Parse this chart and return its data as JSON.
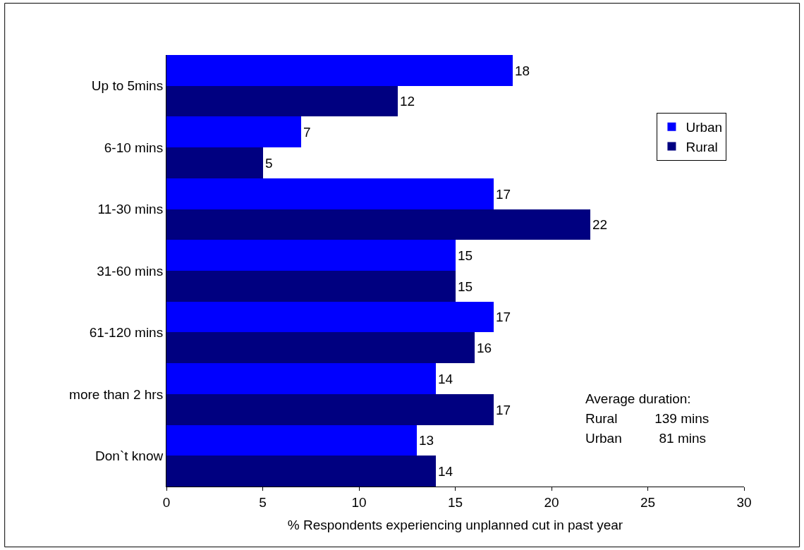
{
  "chart_data": {
    "type": "bar",
    "orientation": "horizontal",
    "xlabel": "% Respondents experiencing unplanned cut in past year",
    "categories": [
      "Up to 5mins",
      "6-10 mins",
      "11-30 mins",
      "31-60 mins",
      "61-120 mins",
      "more than 2 hrs",
      "Don`t know"
    ],
    "series": [
      {
        "name": "Urban",
        "color": "#0000ff",
        "values": [
          18,
          7,
          17,
          15,
          17,
          14,
          13
        ]
      },
      {
        "name": "Rural",
        "color": "#000080",
        "values": [
          12,
          5,
          22,
          15,
          16,
          17,
          14
        ]
      }
    ],
    "xlim": [
      0,
      30
    ],
    "xticks": [
      0,
      5,
      10,
      15,
      20,
      25,
      30
    ],
    "data_labels": true,
    "legend": "top right",
    "annotations": [
      "Average duration:",
      "Rural          139 mins",
      "Urban          81 mins"
    ]
  }
}
